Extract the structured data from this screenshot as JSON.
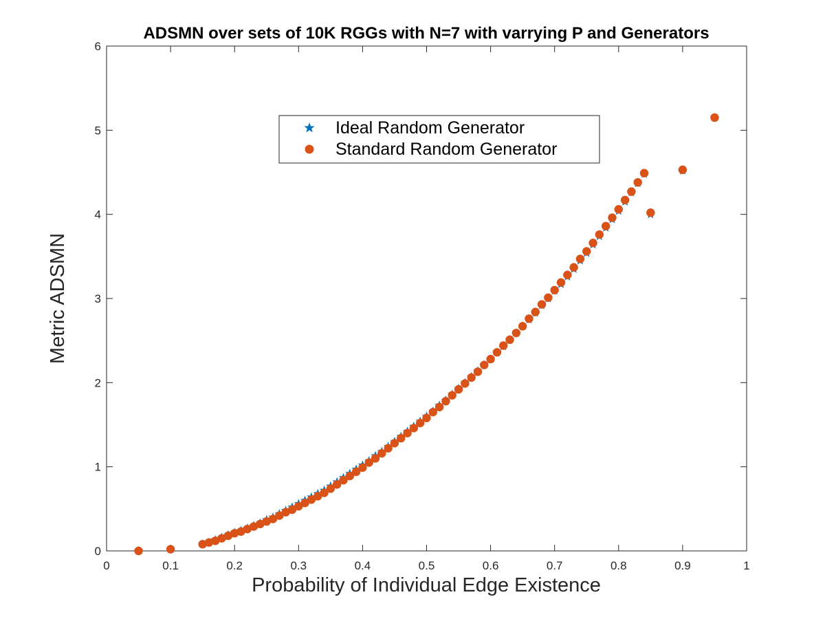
{
  "chart_data": {
    "type": "scatter",
    "title": "ADSMN over sets of 10K RGGs with N=7 with varrying P and Generators",
    "xlabel": "Probability of Individual Edge Existence",
    "ylabel": "Metric ADSMN",
    "xlim": [
      0,
      1
    ],
    "ylim": [
      0,
      6
    ],
    "xticks": [
      "0",
      "0.1",
      "0.2",
      "0.3",
      "0.4",
      "0.5",
      "0.6",
      "0.7",
      "0.8",
      "0.9",
      "1"
    ],
    "yticks": [
      "0",
      "1",
      "2",
      "3",
      "4",
      "5",
      "6"
    ],
    "grid": false,
    "legend_position": "upper-center",
    "series": [
      {
        "name": "Ideal Random Generator",
        "marker": "star",
        "color": "#0072BD",
        "x": [
          0.05,
          0.1,
          0.15,
          0.16,
          0.17,
          0.18,
          0.19,
          0.2,
          0.21,
          0.22,
          0.23,
          0.24,
          0.25,
          0.26,
          0.27,
          0.28,
          0.29,
          0.3,
          0.31,
          0.32,
          0.33,
          0.34,
          0.35,
          0.36,
          0.37,
          0.38,
          0.39,
          0.4,
          0.41,
          0.42,
          0.43,
          0.44,
          0.45,
          0.46,
          0.47,
          0.48,
          0.49,
          0.5,
          0.51,
          0.52,
          0.53,
          0.54,
          0.55,
          0.56,
          0.57,
          0.58,
          0.59,
          0.6,
          0.61,
          0.62,
          0.63,
          0.64,
          0.65,
          0.66,
          0.67,
          0.68,
          0.69,
          0.7,
          0.71,
          0.72,
          0.73,
          0.74,
          0.75,
          0.76,
          0.77,
          0.78,
          0.79,
          0.8,
          0.81,
          0.82,
          0.83,
          0.84,
          0.85,
          0.9,
          0.95
        ],
        "y": [
          0.0,
          0.02,
          0.08,
          0.1,
          0.13,
          0.16,
          0.19,
          0.22,
          0.24,
          0.27,
          0.3,
          0.33,
          0.37,
          0.4,
          0.44,
          0.48,
          0.52,
          0.56,
          0.6,
          0.64,
          0.68,
          0.72,
          0.77,
          0.82,
          0.87,
          0.92,
          0.97,
          1.02,
          1.07,
          1.13,
          1.18,
          1.24,
          1.3,
          1.36,
          1.42,
          1.48,
          1.54,
          1.6,
          1.66,
          1.73,
          1.79,
          1.86,
          1.93,
          2.0,
          2.07,
          2.14,
          2.21,
          2.28,
          2.36,
          2.43,
          2.51,
          2.59,
          2.67,
          2.75,
          2.83,
          2.92,
          3.0,
          3.09,
          3.17,
          3.26,
          3.35,
          3.45,
          3.54,
          3.64,
          3.74,
          3.84,
          3.94,
          4.04,
          4.15,
          4.26,
          4.37,
          4.48,
          4.0,
          4.52,
          5.15
        ]
      },
      {
        "name": "Standard Random Generator",
        "marker": "circle",
        "color": "#D95319",
        "x": [
          0.05,
          0.1,
          0.15,
          0.16,
          0.17,
          0.18,
          0.19,
          0.2,
          0.21,
          0.22,
          0.23,
          0.24,
          0.25,
          0.26,
          0.27,
          0.28,
          0.29,
          0.3,
          0.31,
          0.32,
          0.33,
          0.34,
          0.35,
          0.36,
          0.37,
          0.38,
          0.39,
          0.4,
          0.41,
          0.42,
          0.43,
          0.44,
          0.45,
          0.46,
          0.47,
          0.48,
          0.49,
          0.5,
          0.51,
          0.52,
          0.53,
          0.54,
          0.55,
          0.56,
          0.57,
          0.58,
          0.59,
          0.6,
          0.61,
          0.62,
          0.63,
          0.64,
          0.65,
          0.66,
          0.67,
          0.68,
          0.69,
          0.7,
          0.71,
          0.72,
          0.73,
          0.74,
          0.75,
          0.76,
          0.77,
          0.78,
          0.79,
          0.8,
          0.81,
          0.82,
          0.83,
          0.84,
          0.85,
          0.9,
          0.95
        ],
        "y": [
          0.0,
          0.02,
          0.08,
          0.1,
          0.12,
          0.15,
          0.18,
          0.21,
          0.23,
          0.26,
          0.29,
          0.32,
          0.35,
          0.38,
          0.42,
          0.46,
          0.49,
          0.53,
          0.57,
          0.61,
          0.65,
          0.69,
          0.74,
          0.79,
          0.84,
          0.89,
          0.94,
          0.99,
          1.05,
          1.1,
          1.16,
          1.22,
          1.28,
          1.34,
          1.4,
          1.46,
          1.52,
          1.58,
          1.65,
          1.71,
          1.78,
          1.85,
          1.92,
          1.99,
          2.06,
          2.13,
          2.21,
          2.28,
          2.36,
          2.44,
          2.51,
          2.59,
          2.67,
          2.76,
          2.84,
          2.93,
          3.01,
          3.1,
          3.19,
          3.28,
          3.37,
          3.47,
          3.56,
          3.66,
          3.76,
          3.86,
          3.96,
          4.06,
          4.17,
          4.27,
          4.38,
          4.49,
          4.02,
          4.53,
          5.15
        ]
      }
    ]
  }
}
